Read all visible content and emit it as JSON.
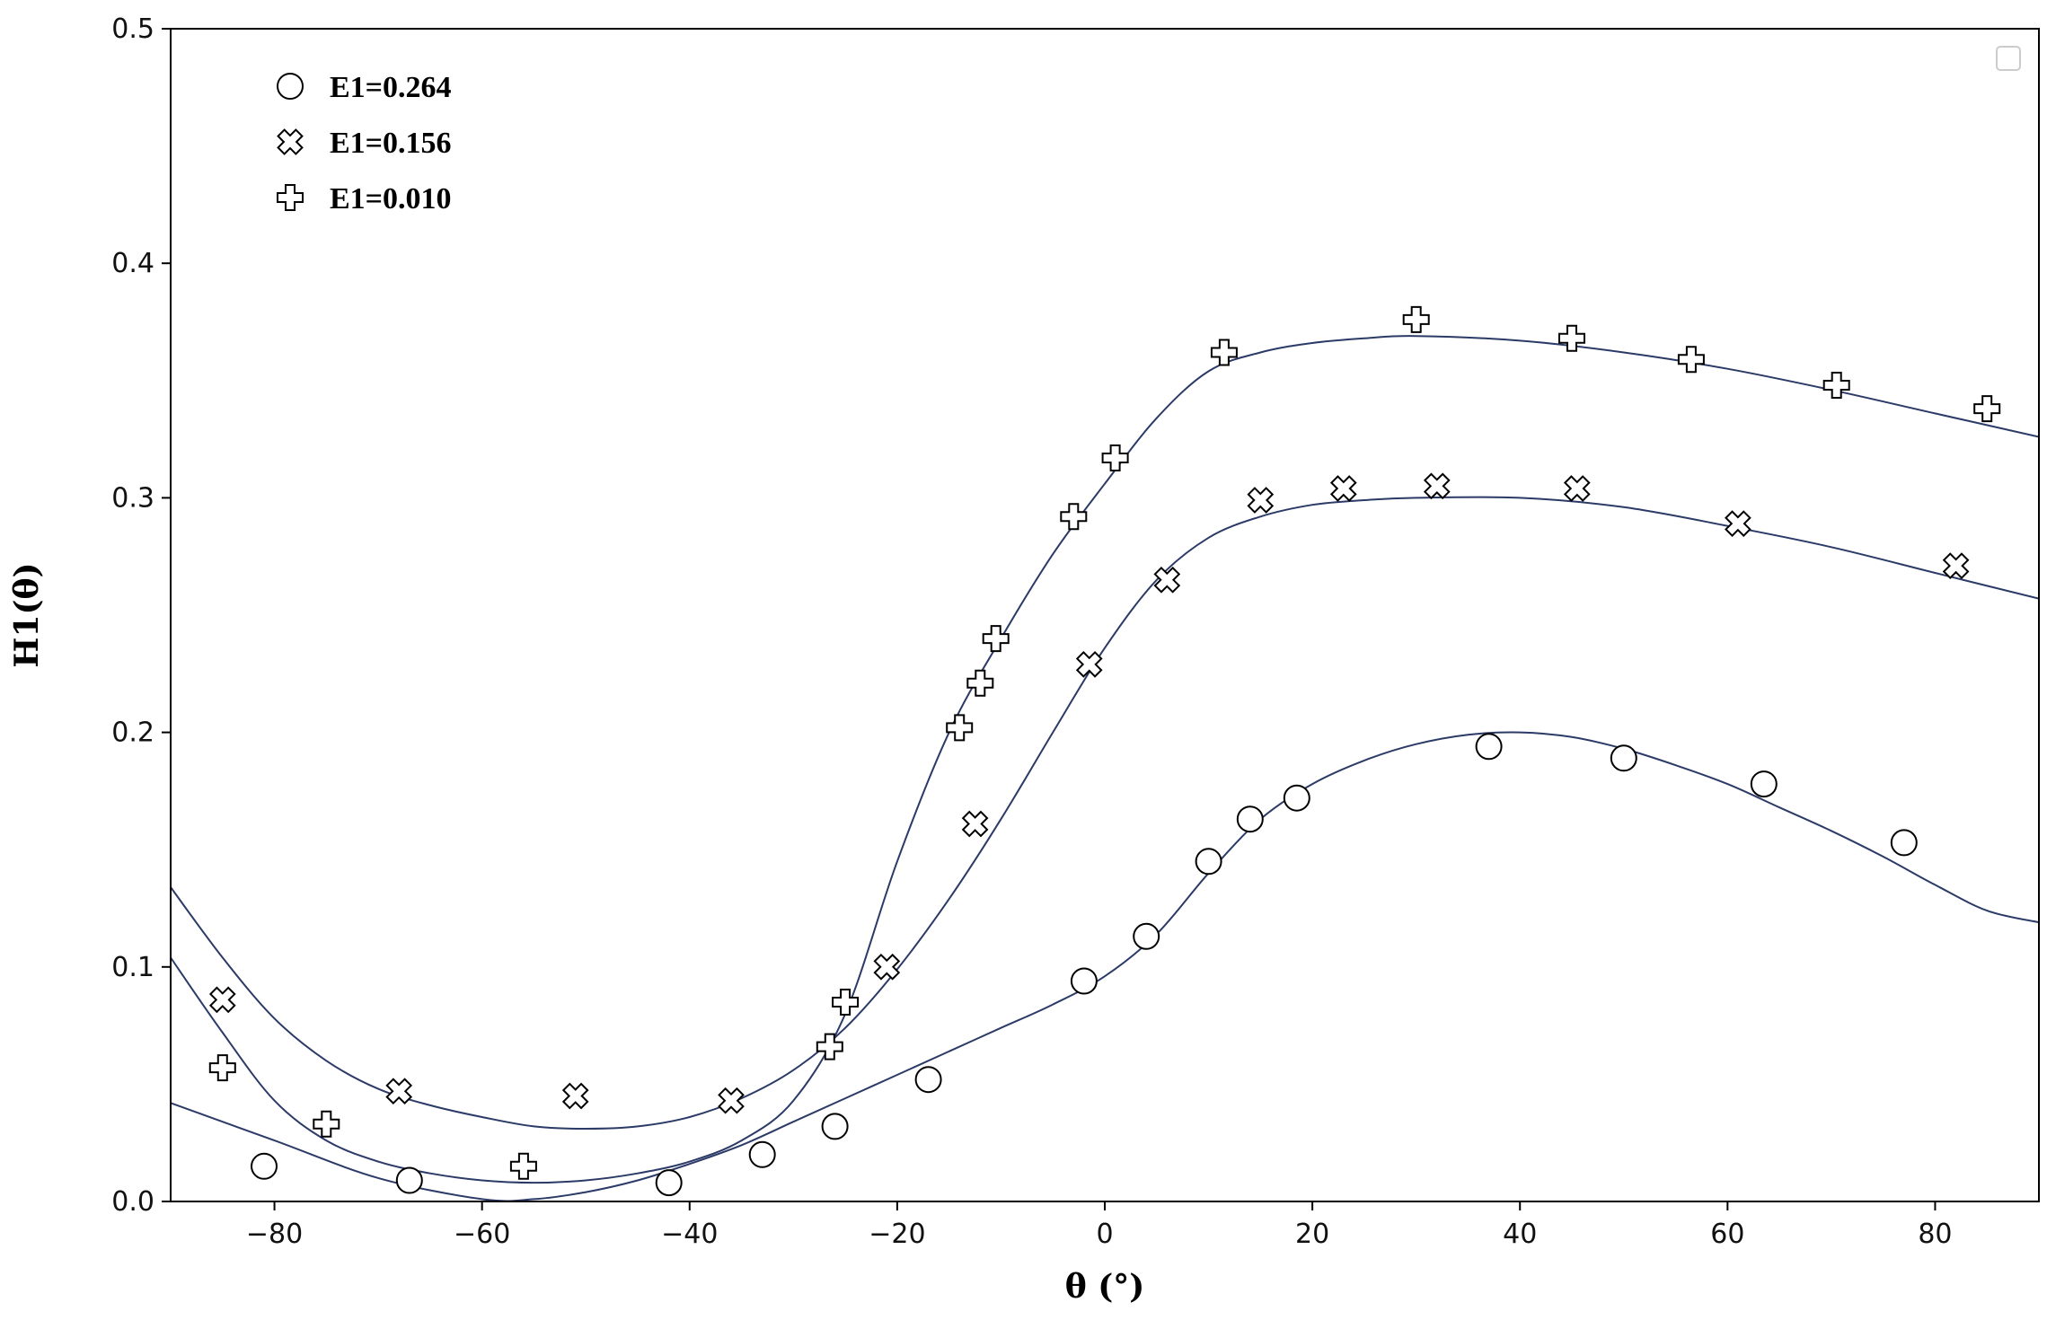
{
  "chart_data": {
    "type": "scatter",
    "title": "",
    "xlabel": "θ (°)",
    "ylabel": "H1(θ)",
    "xlim": [
      -90,
      90
    ],
    "ylim": [
      0,
      0.5
    ],
    "xticks": [
      -80,
      -60,
      -40,
      -20,
      0,
      20,
      40,
      60,
      80
    ],
    "xtick_labels": [
      "−80",
      "−60",
      "−40",
      "−20",
      "0",
      "20",
      "40",
      "60",
      "80"
    ],
    "yticks": [
      0.0,
      0.1,
      0.2,
      0.3,
      0.4,
      0.5
    ],
    "ytick_labels": [
      "0.0",
      "0.1",
      "0.2",
      "0.3",
      "0.4",
      "0.5"
    ],
    "grid": false,
    "legend": {
      "placement": "top-left",
      "entries": [
        "E1=0.264",
        "E1=0.156",
        "E1=0.010"
      ]
    },
    "colors": {
      "fit_line": "#2b3a67",
      "marker_stroke": "#000000",
      "marker_fill": "#ffffff",
      "axes": "#000000"
    },
    "series": [
      {
        "name": "E1=0.264",
        "marker": "circle",
        "points": [
          [
            -81,
            0.015
          ],
          [
            -67,
            0.009
          ],
          [
            -42,
            0.008
          ],
          [
            -33,
            0.02
          ],
          [
            -26,
            0.032
          ],
          [
            -17,
            0.052
          ],
          [
            -2,
            0.094
          ],
          [
            4,
            0.113
          ],
          [
            10,
            0.145
          ],
          [
            14,
            0.163
          ],
          [
            18.5,
            0.172
          ],
          [
            37,
            0.194
          ],
          [
            50,
            0.189
          ],
          [
            63.5,
            0.178
          ],
          [
            77,
            0.153
          ]
        ],
        "fit": [
          [
            -90,
            0.042
          ],
          [
            -80,
            0.026
          ],
          [
            -70,
            0.01
          ],
          [
            -60,
            0.001
          ],
          [
            -55,
            0.001
          ],
          [
            -50,
            0.004
          ],
          [
            -45,
            0.009
          ],
          [
            -40,
            0.016
          ],
          [
            -35,
            0.024
          ],
          [
            -30,
            0.034
          ],
          [
            -25,
            0.044
          ],
          [
            -20,
            0.054
          ],
          [
            -15,
            0.064
          ],
          [
            -10,
            0.074
          ],
          [
            -5,
            0.084
          ],
          [
            0,
            0.096
          ],
          [
            5,
            0.114
          ],
          [
            10,
            0.14
          ],
          [
            15,
            0.163
          ],
          [
            20,
            0.178
          ],
          [
            25,
            0.188
          ],
          [
            30,
            0.195
          ],
          [
            35,
            0.199
          ],
          [
            40,
            0.2
          ],
          [
            45,
            0.198
          ],
          [
            50,
            0.193
          ],
          [
            55,
            0.186
          ],
          [
            60,
            0.178
          ],
          [
            65,
            0.168
          ],
          [
            70,
            0.158
          ],
          [
            75,
            0.147
          ],
          [
            80,
            0.135
          ],
          [
            85,
            0.124
          ],
          [
            90,
            0.119
          ]
        ]
      },
      {
        "name": "E1=0.156",
        "marker": "x-cross",
        "points": [
          [
            -85,
            0.086
          ],
          [
            -68,
            0.047
          ],
          [
            -51,
            0.045
          ],
          [
            -36,
            0.043
          ],
          [
            -21,
            0.1
          ],
          [
            -12.5,
            0.161
          ],
          [
            -1.5,
            0.229
          ],
          [
            6,
            0.265
          ],
          [
            15,
            0.299
          ],
          [
            23,
            0.304
          ],
          [
            32,
            0.305
          ],
          [
            45.5,
            0.304
          ],
          [
            61,
            0.289
          ],
          [
            82,
            0.271
          ]
        ],
        "fit": [
          [
            -90,
            0.134
          ],
          [
            -85,
            0.104
          ],
          [
            -80,
            0.078
          ],
          [
            -75,
            0.06
          ],
          [
            -70,
            0.048
          ],
          [
            -65,
            0.041
          ],
          [
            -60,
            0.036
          ],
          [
            -55,
            0.032
          ],
          [
            -50,
            0.031
          ],
          [
            -45,
            0.032
          ],
          [
            -40,
            0.036
          ],
          [
            -35,
            0.044
          ],
          [
            -30,
            0.056
          ],
          [
            -25,
            0.074
          ],
          [
            -20,
            0.099
          ],
          [
            -15,
            0.129
          ],
          [
            -10,
            0.163
          ],
          [
            -5,
            0.2
          ],
          [
            0,
            0.236
          ],
          [
            5,
            0.265
          ],
          [
            10,
            0.283
          ],
          [
            15,
            0.292
          ],
          [
            20,
            0.297
          ],
          [
            25,
            0.299
          ],
          [
            30,
            0.3
          ],
          [
            40,
            0.3
          ],
          [
            50,
            0.296
          ],
          [
            60,
            0.288
          ],
          [
            70,
            0.279
          ],
          [
            80,
            0.268
          ],
          [
            90,
            0.257
          ]
        ]
      },
      {
        "name": "E1=0.010",
        "marker": "plus",
        "points": [
          [
            -85,
            0.057
          ],
          [
            -75,
            0.033
          ],
          [
            -56,
            0.015
          ],
          [
            -26.5,
            0.066
          ],
          [
            -25,
            0.085
          ],
          [
            -14,
            0.202
          ],
          [
            -12,
            0.221
          ],
          [
            -10.5,
            0.24
          ],
          [
            -3,
            0.292
          ],
          [
            1,
            0.317
          ],
          [
            11.5,
            0.362
          ],
          [
            30,
            0.376
          ],
          [
            45,
            0.368
          ],
          [
            56.5,
            0.359
          ],
          [
            70.5,
            0.348
          ],
          [
            85,
            0.338
          ]
        ],
        "fit": [
          [
            -90,
            0.104
          ],
          [
            -85,
            0.072
          ],
          [
            -80,
            0.043
          ],
          [
            -75,
            0.026
          ],
          [
            -70,
            0.017
          ],
          [
            -65,
            0.012
          ],
          [
            -60,
            0.009
          ],
          [
            -55,
            0.008
          ],
          [
            -50,
            0.009
          ],
          [
            -45,
            0.012
          ],
          [
            -40,
            0.017
          ],
          [
            -35,
            0.026
          ],
          [
            -30,
            0.043
          ],
          [
            -25,
            0.08
          ],
          [
            -20,
            0.145
          ],
          [
            -15,
            0.2
          ],
          [
            -10,
            0.24
          ],
          [
            -5,
            0.276
          ],
          [
            0,
            0.306
          ],
          [
            5,
            0.334
          ],
          [
            10,
            0.354
          ],
          [
            15,
            0.362
          ],
          [
            20,
            0.366
          ],
          [
            25,
            0.368
          ],
          [
            30,
            0.369
          ],
          [
            40,
            0.367
          ],
          [
            50,
            0.362
          ],
          [
            60,
            0.355
          ],
          [
            70,
            0.346
          ],
          [
            80,
            0.336
          ],
          [
            90,
            0.326
          ]
        ]
      }
    ]
  }
}
